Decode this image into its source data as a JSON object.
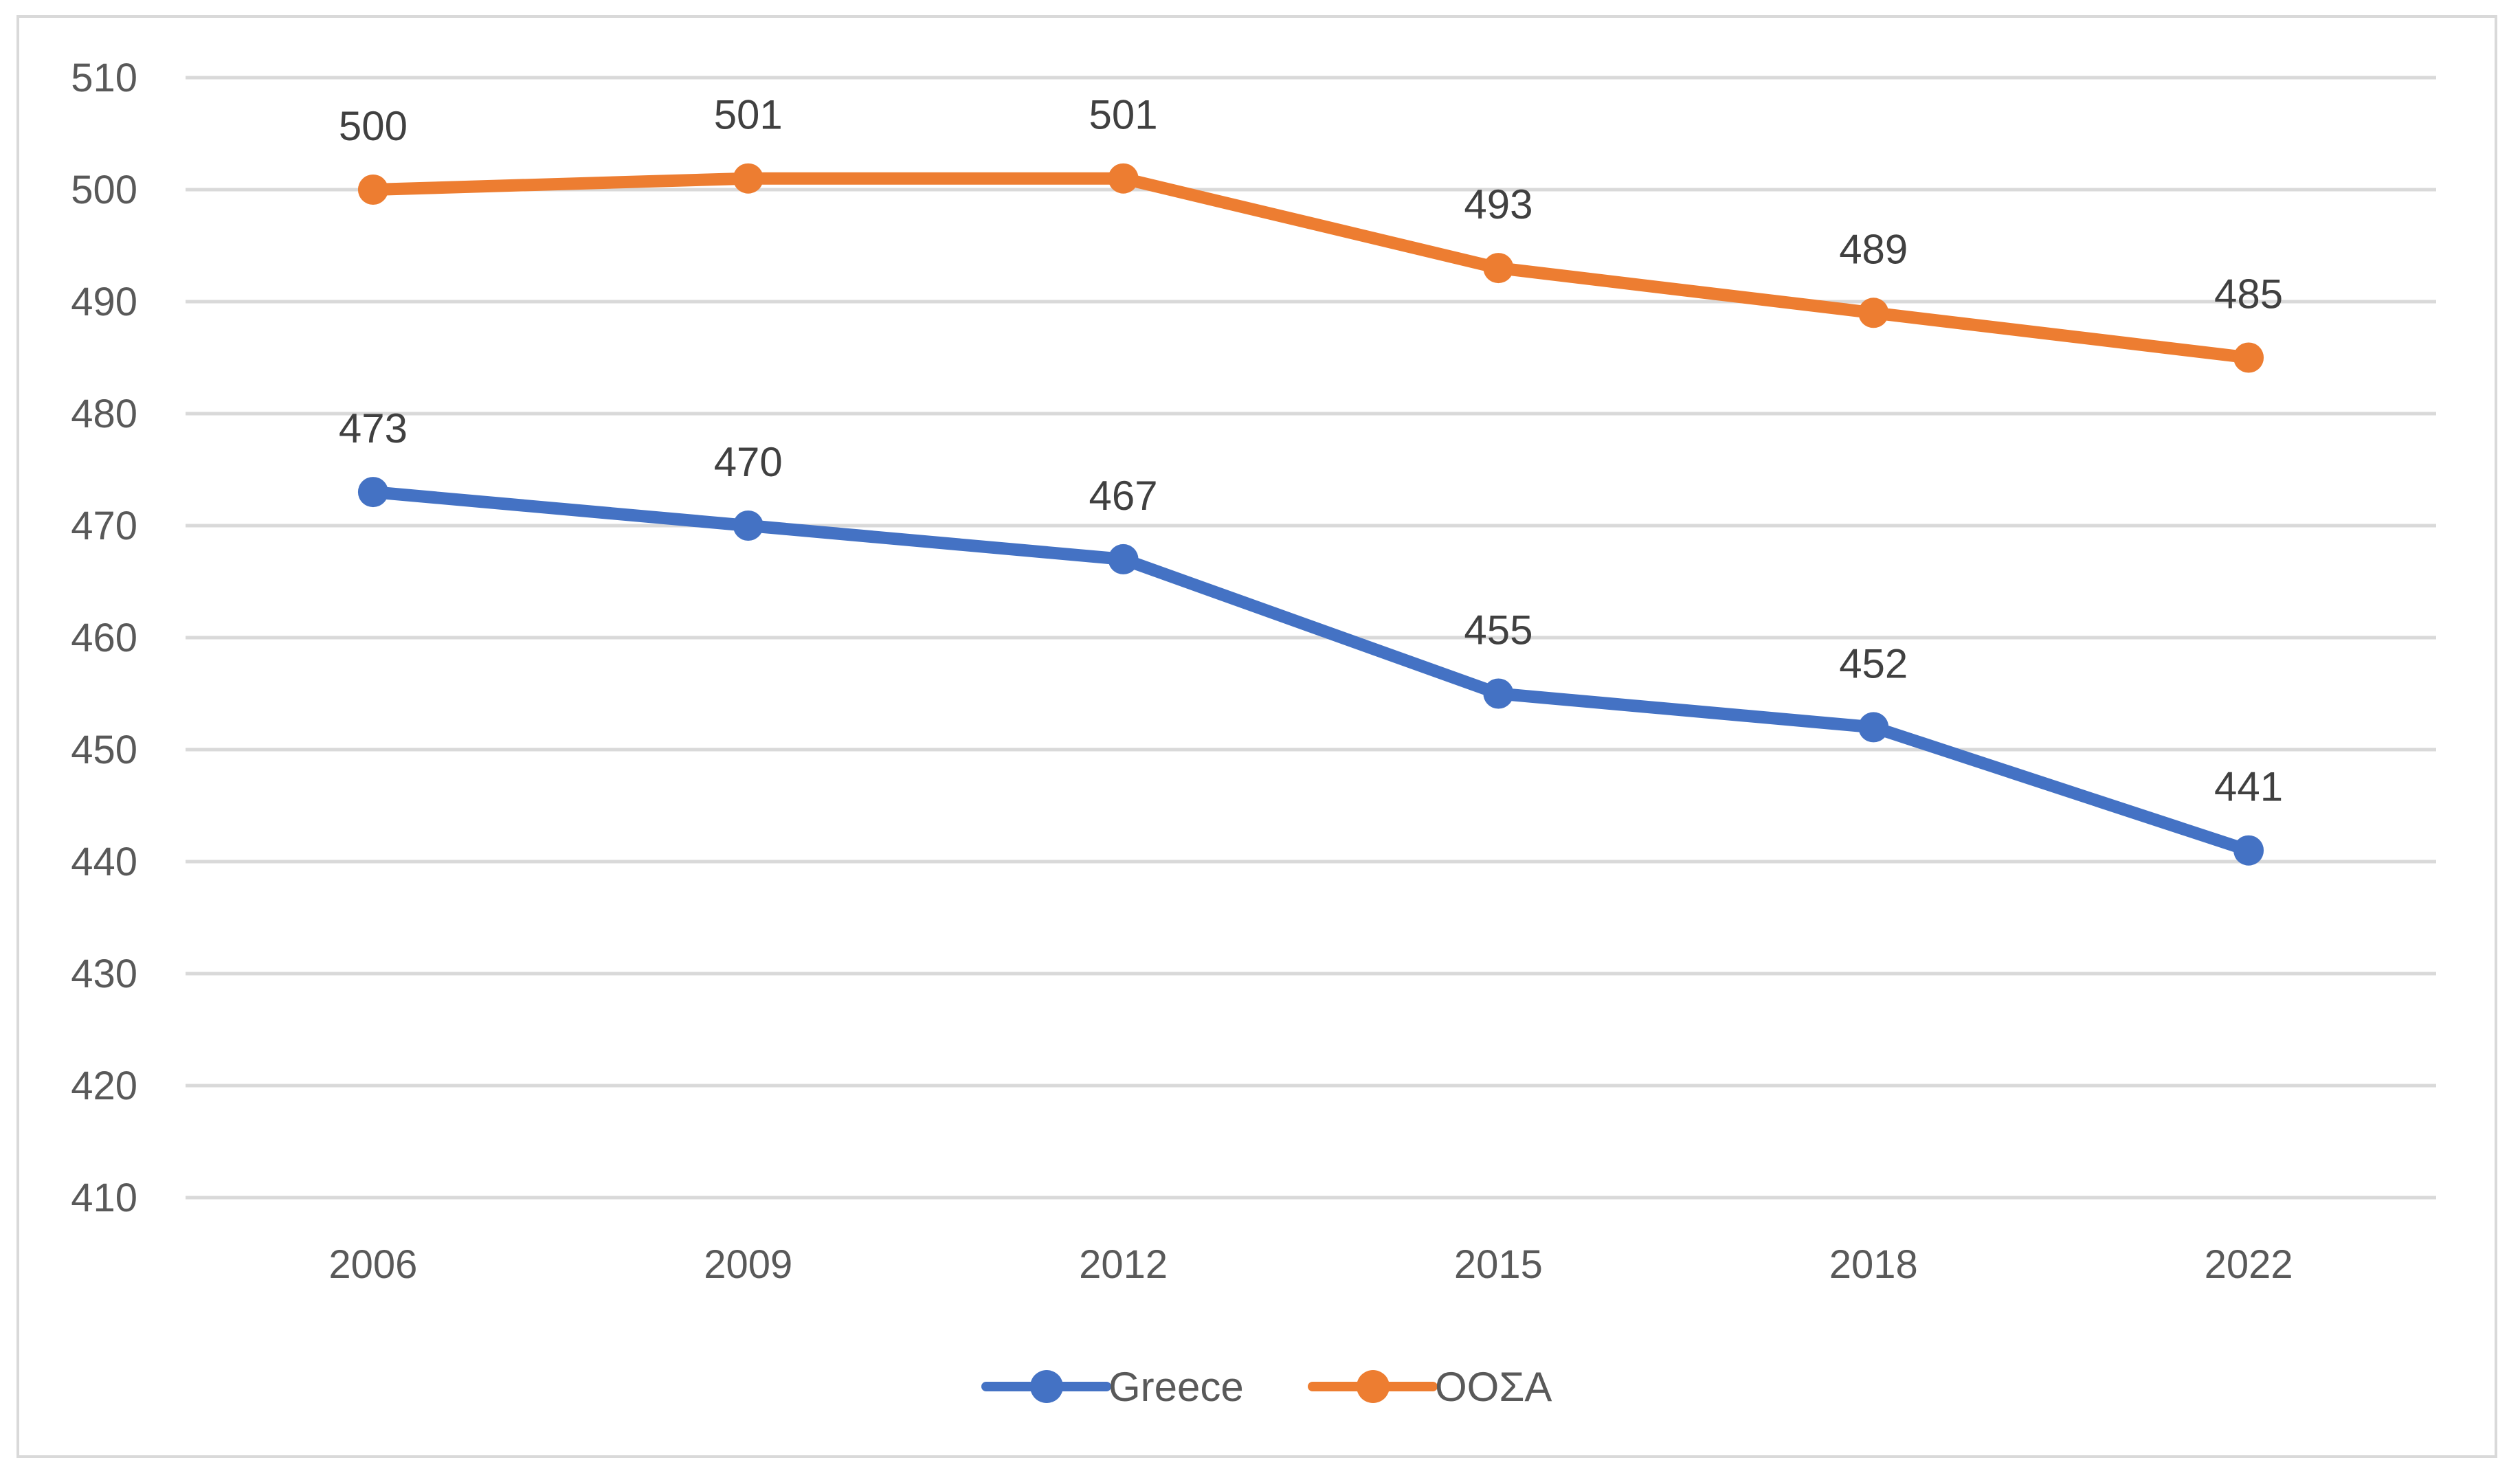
{
  "chart_data": {
    "type": "line",
    "title": "",
    "xlabel": "",
    "ylabel": "",
    "categories": [
      "2006",
      "2009",
      "2012",
      "2015",
      "2018",
      "2022"
    ],
    "ylim": [
      410,
      510
    ],
    "yticks": [
      410,
      420,
      430,
      440,
      450,
      460,
      470,
      480,
      490,
      500,
      510
    ],
    "grid": true,
    "legend_position": "bottom",
    "series": [
      {
        "name": "Greece",
        "color": "#4472c4",
        "values": [
          473,
          470,
          467,
          455,
          452,
          441
        ]
      },
      {
        "name": "ΟΟΣΑ",
        "color": "#ed7d31",
        "values": [
          500,
          501,
          501,
          493,
          489,
          485
        ]
      }
    ]
  }
}
